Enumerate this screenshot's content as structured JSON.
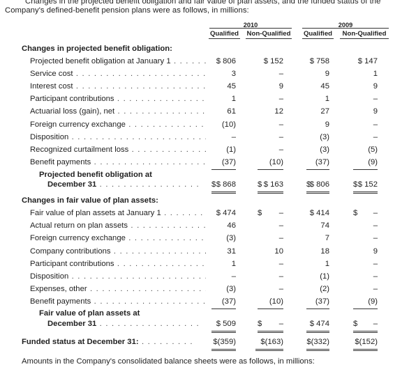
{
  "intro": {
    "line1": "Changes in the projected benefit obligation and fair value of plan assets, and the funded status of the",
    "line2": "Company's defined-benefit pension plans were as follows, in millions:"
  },
  "years": [
    "2010",
    "2009"
  ],
  "columns": [
    "Qualified",
    "Non-Qualified",
    "Qualified",
    "Non-Qualified"
  ],
  "section1": {
    "heading": "Changes in projected benefit obligation:",
    "rows": [
      {
        "label": "Projected benefit obligation at January 1",
        "v": [
          "$ 806",
          "$ 152",
          "$ 758",
          "$ 147"
        ]
      },
      {
        "label": "Service cost",
        "v": [
          "3",
          "–",
          "9",
          "1"
        ]
      },
      {
        "label": "Interest cost",
        "v": [
          "45",
          "9",
          "45",
          "9"
        ]
      },
      {
        "label": "Participant contributions",
        "v": [
          "1",
          "–",
          "1",
          "–"
        ]
      },
      {
        "label": "Actuarial loss (gain), net",
        "v": [
          "61",
          "12",
          "27",
          "9"
        ]
      },
      {
        "label": "Foreign currency exchange",
        "v": [
          "(10)",
          "–",
          "9",
          "–"
        ]
      },
      {
        "label": "Disposition",
        "v": [
          "–",
          "–",
          "(3)",
          "–"
        ]
      },
      {
        "label": "Recognized curtailment loss",
        "v": [
          "(1)",
          "–",
          "(3)",
          "(5)"
        ]
      },
      {
        "label": "Benefit payments",
        "v": [
          "(37)",
          "(10)",
          "(37)",
          "(9)"
        ]
      }
    ],
    "total_label_1": "Projected benefit obligation at",
    "total_label_2": "December 31",
    "total": [
      "$ 868",
      "$ 163",
      "$ 806",
      "$ 152"
    ]
  },
  "section2": {
    "heading": "Changes in fair value of plan assets:",
    "rows": [
      {
        "label": "Fair value of plan assets at January 1",
        "v": [
          "$ 474",
          "–",
          "$ 414",
          "–"
        ]
      },
      {
        "label": "Actual return on plan assets",
        "v": [
          "46",
          "–",
          "74",
          "–"
        ]
      },
      {
        "label": "Foreign currency exchange",
        "v": [
          "(3)",
          "–",
          "7",
          "–"
        ]
      },
      {
        "label": "Company contributions",
        "v": [
          "31",
          "10",
          "18",
          "9"
        ]
      },
      {
        "label": "Participant contributions",
        "v": [
          "1",
          "–",
          "1",
          "–"
        ]
      },
      {
        "label": "Disposition",
        "v": [
          "–",
          "–",
          "(1)",
          "–"
        ]
      },
      {
        "label": "Expenses, other",
        "v": [
          "(3)",
          "–",
          "(2)",
          "–"
        ]
      },
      {
        "label": "Benefit payments",
        "v": [
          "(37)",
          "(10)",
          "(37)",
          "(9)"
        ]
      }
    ],
    "total_label_1": "Fair value of plan assets at",
    "total_label_2": "December 31",
    "total": [
      "$ 509",
      "–",
      "$ 474",
      "–"
    ]
  },
  "funded": {
    "label": "Funded status at December 31:",
    "v": [
      "$(359)",
      "$(163)",
      "$(332)",
      "$(152)"
    ]
  },
  "dollar_sign": "$",
  "outro": "Amounts in the Company's consolidated balance sheets were as follows, in millions:"
}
